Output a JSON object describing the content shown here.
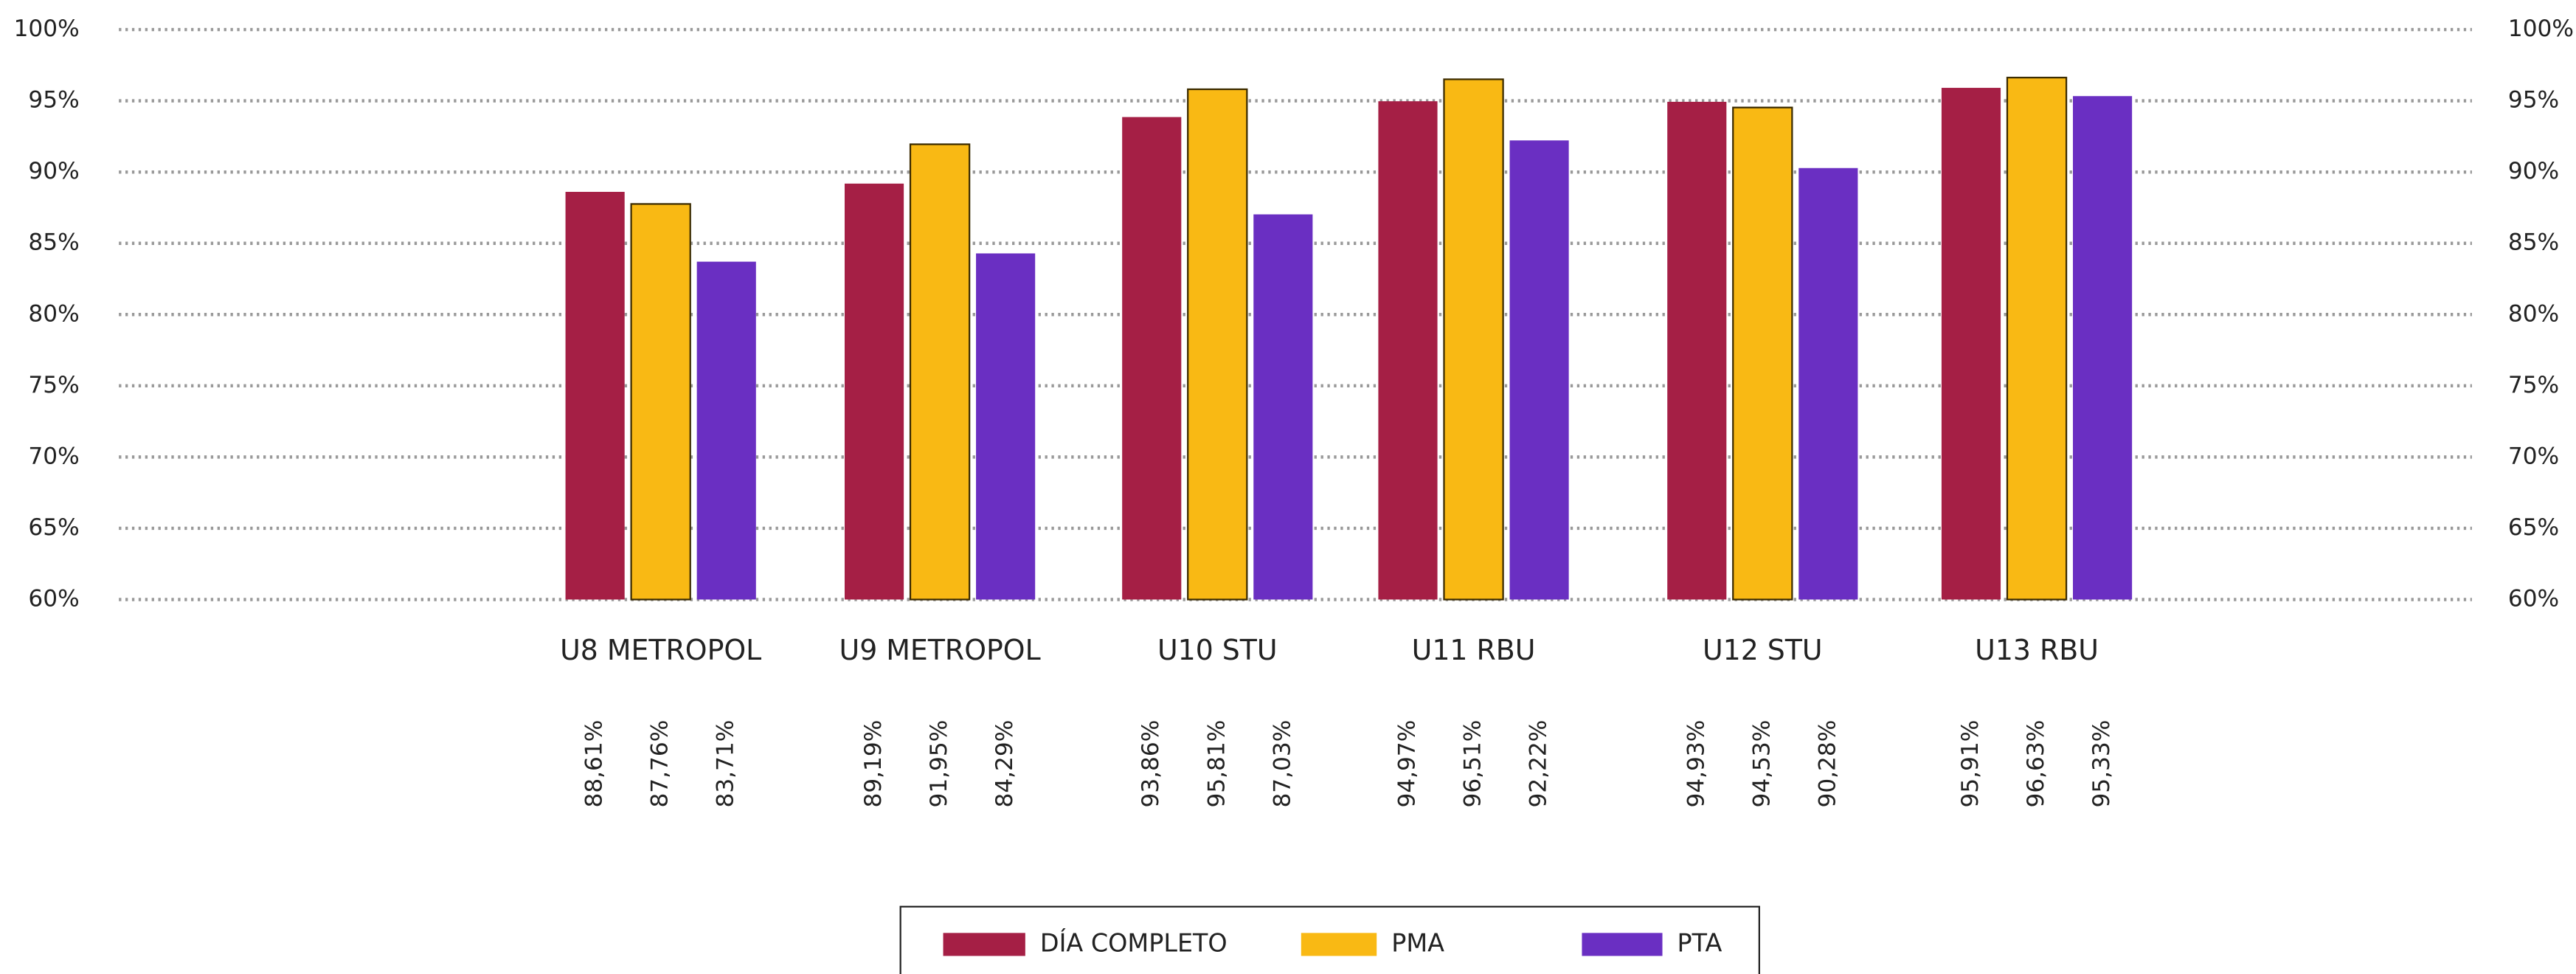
{
  "chart_data": {
    "type": "bar",
    "categories": [
      "U8 METROPOL",
      "U9 METROPOL",
      "U10 STU",
      "U11 RBU",
      "U12 STU",
      "U13 RBU"
    ],
    "series": [
      {
        "name": "DÍA COMPLETO",
        "color": "#a51f45",
        "values": [
          88.61,
          89.19,
          93.86,
          94.97,
          94.93,
          95.91
        ],
        "value_labels": [
          "88,61%",
          "89,19%",
          "93,86%",
          "94,97%",
          "94,93%",
          "95,91%"
        ]
      },
      {
        "name": "PMA",
        "color": "#f9b914",
        "values": [
          87.76,
          91.95,
          95.81,
          96.51,
          94.53,
          96.63
        ],
        "value_labels": [
          "87,76%",
          "91,95%",
          "95,81%",
          "96,51%",
          "94,53%",
          "96,63%"
        ]
      },
      {
        "name": "PTA",
        "color": "#6a2fc2",
        "values": [
          83.71,
          84.29,
          87.03,
          92.22,
          90.28,
          95.33
        ],
        "value_labels": [
          "83,71%",
          "84,29%",
          "87,03%",
          "92,22%",
          "90,28%",
          "95,33%"
        ]
      }
    ],
    "ylim": [
      60,
      100
    ],
    "yticks": [
      {
        "value": 60,
        "label": "60%"
      },
      {
        "value": 65,
        "label": "65%"
      },
      {
        "value": 70,
        "label": "70%"
      },
      {
        "value": 75,
        "label": "75%"
      },
      {
        "value": 80,
        "label": "80%"
      },
      {
        "value": 85,
        "label": "85%"
      },
      {
        "value": 90,
        "label": "90%"
      },
      {
        "value": 95,
        "label": "95%"
      },
      {
        "value": 100,
        "label": "100%"
      }
    ],
    "grid": true,
    "legend": "bottom"
  }
}
